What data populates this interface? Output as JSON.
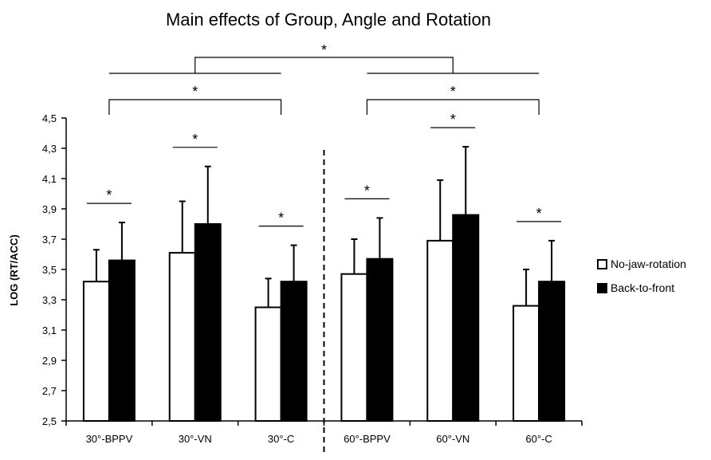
{
  "chart_data": {
    "type": "bar",
    "title": "Main effects of Group, Angle and Rotation",
    "xlabel": "",
    "ylabel": "LOG (RT/ACC)",
    "ylim": [
      2.5,
      4.5
    ],
    "yticks": [
      "2,5",
      "2,7",
      "2,9",
      "3,1",
      "3,3",
      "3,5",
      "3,7",
      "3,9",
      "4,1",
      "4,3",
      "4,5"
    ],
    "categories": [
      "30°-BPPV",
      "30°-VN",
      "30°-C",
      "60°-BPPV",
      "60°-VN",
      "60°-C"
    ],
    "series": [
      {
        "name": "No-jaw-rotation",
        "color": "#ffffff",
        "values": [
          3.42,
          3.61,
          3.25,
          3.47,
          3.69,
          3.26
        ],
        "error": [
          0.21,
          0.34,
          0.19,
          0.23,
          0.4,
          0.24
        ]
      },
      {
        "name": "Back-to-front",
        "color": "#000000",
        "values": [
          3.56,
          3.8,
          3.42,
          3.57,
          3.86,
          3.42
        ],
        "error": [
          0.25,
          0.38,
          0.24,
          0.27,
          0.45,
          0.27
        ]
      }
    ],
    "significance_marker": "*",
    "divider": "dashed line between 30° and 60° groups",
    "legend_position": "right",
    "grid": false
  }
}
